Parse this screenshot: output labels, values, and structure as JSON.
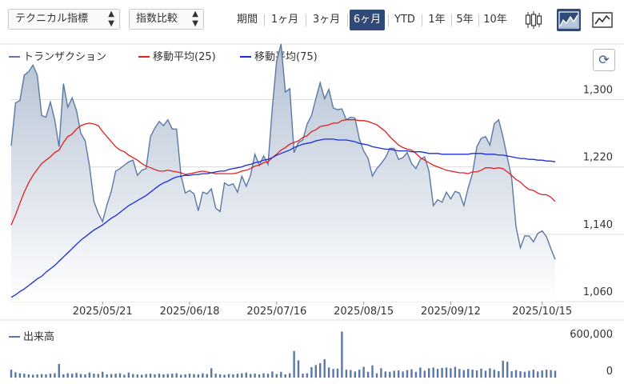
{
  "toolbar": {
    "technical_select": "テクニカル指標",
    "compare_select": "指数比較",
    "periods": [
      "期間",
      "1ヶ月",
      "3ヶ月",
      "6ヶ月",
      "YTD",
      "1年",
      "5年",
      "10年"
    ],
    "active_period": "6ヶ月",
    "chart_types": [
      "candlestick-icon",
      "area-chart-icon",
      "line-chart-icon"
    ],
    "active_chart_type": "area-chart-icon"
  },
  "colors": {
    "price": "#5a78a6",
    "ma25": "#e02020",
    "ma75": "#1a2bd8",
    "active": "#2f4a78",
    "volume": "#5a78a6"
  },
  "chart_data": [
    {
      "type": "area",
      "legend": [
        "トランザクション",
        "移動平均(25)",
        "移動平均(75)"
      ],
      "legend_position": "top-left",
      "x_ticks": [
        "2025/05/21",
        "2025/06/18",
        "2025/07/16",
        "2025/08/15",
        "2025/09/12",
        "2025/10/15"
      ],
      "y_ticks": [
        1060,
        1140,
        1220,
        1300
      ],
      "ylim": [
        1060,
        1366
      ],
      "grid": true,
      "series": [
        {
          "name": "トランザクション",
          "values": [
            1245,
            1296,
            1299,
            1329,
            1333,
            1341,
            1329,
            1281,
            1279,
            1297,
            1276,
            1244,
            1319,
            1291,
            1302,
            1287,
            1260,
            1251,
            1221,
            1179,
            1165,
            1155,
            1175,
            1191,
            1215,
            1218,
            1222,
            1226,
            1228,
            1210,
            1216,
            1218,
            1256,
            1266,
            1274,
            1269,
            1276,
            1265,
            1265,
            1210,
            1189,
            1192,
            1188,
            1168,
            1190,
            1188,
            1194,
            1171,
            1167,
            1201,
            1198,
            1200,
            1190,
            1209,
            1197,
            1210,
            1235,
            1222,
            1233,
            1223,
            1290,
            1346,
            1366,
            1309,
            1313,
            1237,
            1249,
            1252,
            1271,
            1281,
            1301,
            1320,
            1301,
            1312,
            1290,
            1288,
            1289,
            1276,
            1279,
            1278,
            1253,
            1239,
            1230,
            1209,
            1218,
            1224,
            1231,
            1242,
            1242,
            1229,
            1231,
            1237,
            1224,
            1218,
            1229,
            1232,
            1215,
            1174,
            1181,
            1178,
            1190,
            1182,
            1191,
            1189,
            1174,
            1195,
            1212,
            1244,
            1254,
            1256,
            1246,
            1271,
            1276,
            1256,
            1231,
            1207,
            1149,
            1124,
            1138,
            1138,
            1131,
            1141,
            1144,
            1137,
            1123,
            1110
          ]
        },
        {
          "name": "移動平均(25)",
          "values": [
            1151,
            1163,
            1177,
            1190,
            1201,
            1210,
            1217,
            1224,
            1228,
            1232,
            1237,
            1240,
            1249,
            1256,
            1259,
            1265,
            1269,
            1271,
            1272,
            1271,
            1269,
            1262,
            1256,
            1250,
            1244,
            1240,
            1238,
            1234,
            1231,
            1228,
            1224,
            1221,
            1219,
            1217,
            1215,
            1215,
            1216,
            1215,
            1214,
            1213,
            1211,
            1212,
            1213,
            1214,
            1215,
            1214,
            1213,
            1212,
            1212,
            1212,
            1212,
            1212,
            1213,
            1215,
            1216,
            1218,
            1221,
            1222,
            1225,
            1226,
            1231,
            1235,
            1240,
            1243,
            1247,
            1249,
            1251,
            1255,
            1257,
            1262,
            1264,
            1268,
            1269,
            1270,
            1272,
            1272,
            1275,
            1276,
            1276,
            1276,
            1275,
            1275,
            1274,
            1272,
            1270,
            1266,
            1262,
            1256,
            1251,
            1246,
            1243,
            1241,
            1240,
            1236,
            1231,
            1228,
            1225,
            1222,
            1220,
            1218,
            1216,
            1215,
            1214,
            1213,
            1213,
            1212,
            1214,
            1214,
            1216,
            1219,
            1219,
            1218,
            1219,
            1218,
            1214,
            1210,
            1205,
            1202,
            1197,
            1193,
            1192,
            1189,
            1187,
            1187,
            1184,
            1179
          ]
        },
        {
          "name": "移動平均(75)",
          "values": [
            1065,
            1068,
            1072,
            1075,
            1079,
            1083,
            1087,
            1090,
            1095,
            1099,
            1103,
            1108,
            1113,
            1118,
            1123,
            1128,
            1133,
            1137,
            1141,
            1145,
            1148,
            1151,
            1155,
            1159,
            1162,
            1166,
            1170,
            1174,
            1177,
            1180,
            1183,
            1186,
            1190,
            1194,
            1198,
            1201,
            1203,
            1206,
            1208,
            1209,
            1210,
            1210,
            1211,
            1211,
            1212,
            1212,
            1213,
            1214,
            1215,
            1215,
            1217,
            1218,
            1219,
            1220,
            1222,
            1223,
            1225,
            1226,
            1228,
            1229,
            1231,
            1234,
            1236,
            1238,
            1240,
            1243,
            1245,
            1247,
            1248,
            1249,
            1251,
            1252,
            1253,
            1253,
            1253,
            1252,
            1252,
            1252,
            1251,
            1250,
            1248,
            1247,
            1246,
            1244,
            1243,
            1242,
            1241,
            1241,
            1240,
            1239,
            1239,
            1239,
            1238,
            1238,
            1238,
            1237,
            1236,
            1236,
            1236,
            1235,
            1235,
            1235,
            1235,
            1235,
            1235,
            1235,
            1236,
            1236,
            1236,
            1235,
            1235,
            1235,
            1234,
            1234,
            1233,
            1232,
            1231,
            1230,
            1230,
            1229,
            1229,
            1228,
            1228,
            1227,
            1227,
            1226
          ]
        }
      ]
    },
    {
      "type": "bar",
      "legend": [
        "出来高"
      ],
      "legend_position": "top-left",
      "y_ticks": [
        0,
        600000
      ],
      "ylim": [
        0,
        800000
      ],
      "series": [
        {
          "name": "出来高",
          "values": [
            110000,
            75000,
            60000,
            55000,
            45000,
            40000,
            45000,
            50000,
            45000,
            55000,
            60000,
            190000,
            45000,
            60000,
            55000,
            65000,
            50000,
            45000,
            70000,
            55000,
            50000,
            80000,
            45000,
            50000,
            55000,
            60000,
            40000,
            70000,
            50000,
            45000,
            40000,
            50000,
            55000,
            45000,
            55000,
            45000,
            50000,
            55000,
            60000,
            40000,
            45000,
            55000,
            50000,
            45000,
            60000,
            50000,
            130000,
            55000,
            45000,
            40000,
            50000,
            45000,
            55000,
            60000,
            70000,
            50000,
            55000,
            45000,
            60000,
            55000,
            85000,
            50000,
            80000,
            45000,
            60000,
            370000,
            240000,
            55000,
            60000,
            145000,
            175000,
            200000,
            255000,
            140000,
            120000,
            125000,
            640000,
            110000,
            105000,
            85000,
            110000,
            150000,
            80000,
            170000,
            60000,
            130000,
            85000,
            80000,
            95000,
            100000,
            85000,
            105000,
            115000,
            80000,
            140000,
            95000,
            130000,
            140000,
            120000,
            135000,
            140000,
            130000,
            150000,
            120000,
            105000,
            120000,
            110000,
            100000,
            125000,
            95000,
            130000,
            110000,
            90000,
            235000,
            220000,
            90000,
            105000,
            90000,
            80000,
            95000,
            110000,
            85000,
            100000,
            110000,
            105000,
            95000
          ]
        }
      ]
    }
  ]
}
